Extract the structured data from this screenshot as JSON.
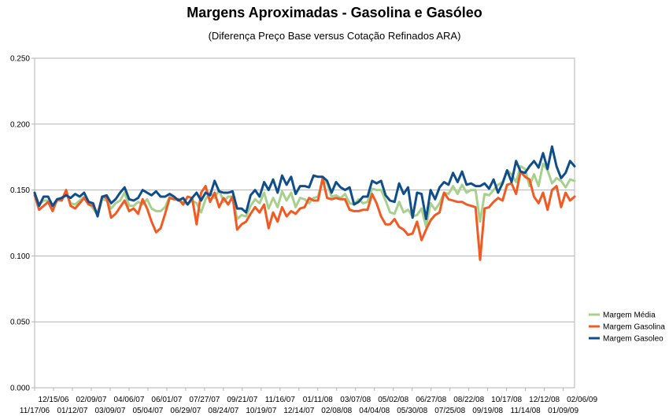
{
  "title": "Margens Aproximadas - Gasolina e Gasóleo",
  "subtitle": "(Diferença Preço Base versus Cotação Refinados ARA)",
  "chart_data": {
    "type": "line",
    "title": "Margens Aproximadas - Gasolina e Gasóleo",
    "subtitle": "(Diferença Preço Base versus Cotação Refinados ARA)",
    "xlabel": "",
    "ylabel": "",
    "ylim": [
      0.0,
      0.25
    ],
    "yticks": [
      "0.000",
      "0.050",
      "0.100",
      "0.150",
      "0.200",
      "0.250"
    ],
    "grid": "horizontal",
    "legend_position": "right",
    "x_tick_labels_bottom": [
      "11/17/06",
      "01/12/07",
      "03/09/07",
      "05/04/07",
      "06/29/07",
      "08/24/07",
      "10/19/07",
      "12/14/07",
      "02/08/08",
      "04/04/08",
      "05/30/08",
      "07/25/08",
      "09/19/08",
      "11/14/08",
      "01/09/09"
    ],
    "x_tick_labels_top": [
      "12/15/06",
      "02/09/07",
      "04/06/07",
      "06/01/07",
      "07/27/07",
      "09/21/07",
      "11/16/07",
      "01/11/08",
      "03/07/08",
      "05/02/08",
      "06/27/08",
      "08/22/08",
      "10/17/08",
      "12/12/08",
      "02/06/09"
    ],
    "series": [
      {
        "name": "Margem Média",
        "color": "#a8d08d",
        "values": [
          0.147,
          0.139,
          0.142,
          0.142,
          0.136,
          0.142,
          0.142,
          0.148,
          0.14,
          0.139,
          0.142,
          0.145,
          0.14,
          0.136,
          0.131,
          0.143,
          0.142,
          0.136,
          0.14,
          0.142,
          0.148,
          0.138,
          0.138,
          0.141,
          0.139,
          0.143,
          0.136,
          0.134,
          0.134,
          0.137,
          0.145,
          0.143,
          0.142,
          0.141,
          0.139,
          0.142,
          0.14,
          0.133,
          0.143,
          0.148,
          0.144,
          0.15,
          0.141,
          0.145,
          0.145,
          0.128,
          0.131,
          0.13,
          0.138,
          0.143,
          0.14,
          0.148,
          0.136,
          0.144,
          0.137,
          0.149,
          0.142,
          0.148,
          0.137,
          0.144,
          0.143,
          0.14,
          0.144,
          0.145,
          0.158,
          0.155,
          0.145,
          0.146,
          0.144,
          0.147,
          0.14,
          0.139,
          0.143,
          0.14,
          0.141,
          0.151,
          0.15,
          0.15,
          0.142,
          0.133,
          0.132,
          0.141,
          0.133,
          0.135,
          0.13,
          0.131,
          0.136,
          0.122,
          0.14,
          0.135,
          0.14,
          0.148,
          0.147,
          0.153,
          0.147,
          0.154,
          0.148,
          0.15,
          0.15,
          0.126,
          0.147,
          0.146,
          0.15,
          0.154,
          0.156,
          0.165,
          0.162,
          0.156,
          0.168,
          0.166,
          0.153,
          0.162,
          0.153,
          0.17,
          0.165,
          0.155,
          0.159,
          0.157,
          0.152,
          0.158,
          0.157
        ]
      },
      {
        "name": "Margem Gasolina",
        "color": "#f15a22",
        "values": [
          0.146,
          0.135,
          0.138,
          0.141,
          0.134,
          0.143,
          0.142,
          0.15,
          0.138,
          0.136,
          0.14,
          0.144,
          0.139,
          0.138,
          0.132,
          0.145,
          0.144,
          0.129,
          0.132,
          0.137,
          0.142,
          0.134,
          0.136,
          0.132,
          0.143,
          0.136,
          0.126,
          0.118,
          0.121,
          0.132,
          0.144,
          0.143,
          0.143,
          0.139,
          0.145,
          0.144,
          0.124,
          0.148,
          0.153,
          0.141,
          0.148,
          0.137,
          0.144,
          0.139,
          0.145,
          0.12,
          0.124,
          0.126,
          0.132,
          0.137,
          0.133,
          0.139,
          0.121,
          0.133,
          0.126,
          0.137,
          0.13,
          0.134,
          0.132,
          0.136,
          0.137,
          0.144,
          0.142,
          0.142,
          0.159,
          0.144,
          0.143,
          0.144,
          0.143,
          0.143,
          0.135,
          0.134,
          0.134,
          0.135,
          0.135,
          0.147,
          0.14,
          0.13,
          0.124,
          0.124,
          0.128,
          0.122,
          0.12,
          0.116,
          0.117,
          0.126,
          0.112,
          0.12,
          0.127,
          0.131,
          0.133,
          0.148,
          0.143,
          0.142,
          0.141,
          0.141,
          0.139,
          0.138,
          0.137,
          0.097,
          0.136,
          0.137,
          0.141,
          0.144,
          0.142,
          0.154,
          0.155,
          0.147,
          0.164,
          0.16,
          0.158,
          0.145,
          0.14,
          0.148,
          0.135,
          0.15,
          0.153,
          0.137,
          0.148,
          0.142,
          0.145
        ]
      },
      {
        "name": "Margem Gasoleo",
        "color": "#104e8b",
        "values": [
          0.148,
          0.138,
          0.145,
          0.145,
          0.138,
          0.143,
          0.144,
          0.146,
          0.144,
          0.147,
          0.145,
          0.148,
          0.141,
          0.14,
          0.13,
          0.145,
          0.146,
          0.14,
          0.143,
          0.148,
          0.152,
          0.143,
          0.142,
          0.144,
          0.15,
          0.148,
          0.146,
          0.149,
          0.145,
          0.145,
          0.147,
          0.145,
          0.142,
          0.144,
          0.139,
          0.144,
          0.148,
          0.142,
          0.148,
          0.146,
          0.157,
          0.149,
          0.148,
          0.148,
          0.149,
          0.136,
          0.136,
          0.133,
          0.146,
          0.15,
          0.145,
          0.156,
          0.15,
          0.158,
          0.148,
          0.161,
          0.154,
          0.16,
          0.147,
          0.153,
          0.153,
          0.152,
          0.161,
          0.16,
          0.16,
          0.157,
          0.148,
          0.156,
          0.152,
          0.15,
          0.152,
          0.139,
          0.141,
          0.145,
          0.145,
          0.157,
          0.155,
          0.157,
          0.146,
          0.142,
          0.141,
          0.155,
          0.147,
          0.152,
          0.129,
          0.148,
          0.147,
          0.128,
          0.15,
          0.143,
          0.152,
          0.156,
          0.154,
          0.163,
          0.156,
          0.164,
          0.154,
          0.155,
          0.153,
          0.153,
          0.155,
          0.151,
          0.158,
          0.148,
          0.155,
          0.165,
          0.156,
          0.172,
          0.164,
          0.163,
          0.168,
          0.172,
          0.167,
          0.178,
          0.166,
          0.183,
          0.168,
          0.159,
          0.163,
          0.172,
          0.168
        ]
      }
    ]
  }
}
